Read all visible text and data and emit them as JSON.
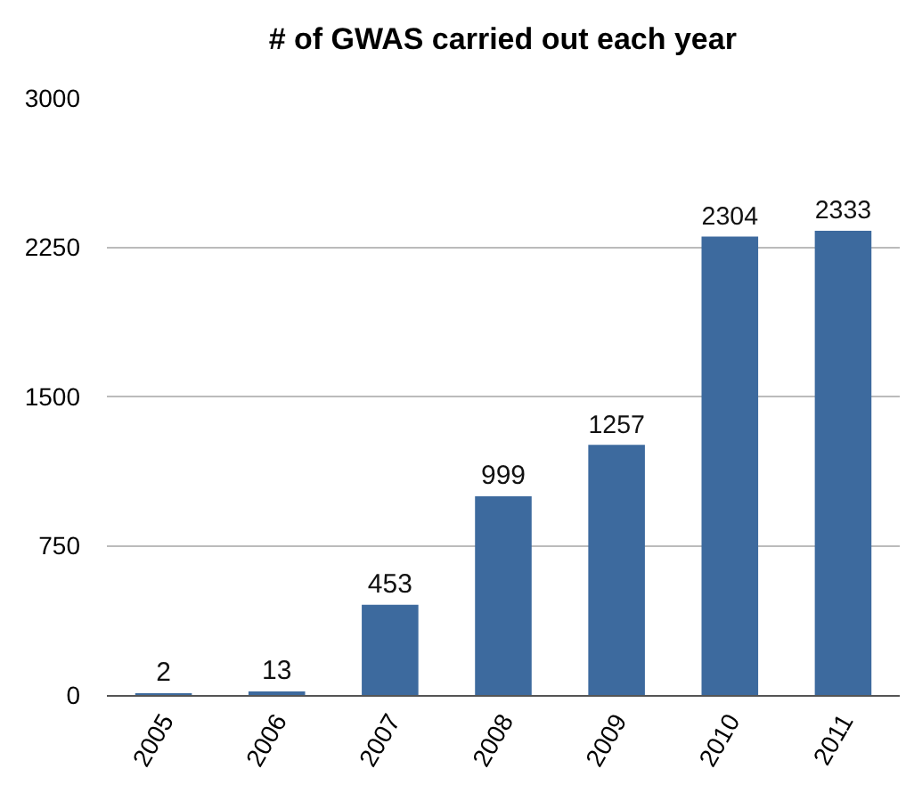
{
  "chart_data": {
    "type": "bar",
    "title": "# of GWAS carried out each year",
    "categories": [
      "2005",
      "2006",
      "2007",
      "2008",
      "2009",
      "2010",
      "2011"
    ],
    "values": [
      2,
      13,
      453,
      999,
      1257,
      2304,
      2333
    ],
    "color": "#3d6a9e",
    "ylim": [
      0,
      3000
    ],
    "yticks": [
      0,
      750,
      1500,
      2250,
      3000
    ],
    "grid": "y",
    "data_labels": true
  }
}
